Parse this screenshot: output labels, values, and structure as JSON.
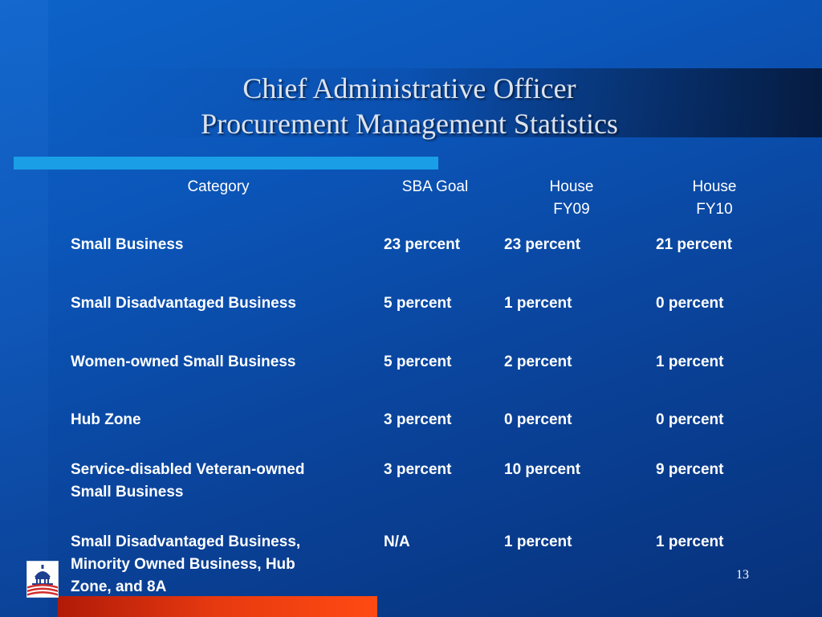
{
  "slide": {
    "title_line1": "Chief Administrative Officer",
    "title_line2": "Procurement Management Statistics",
    "page_number": "13"
  },
  "table": {
    "headers": {
      "category": "Category",
      "sba_goal": "SBA Goal",
      "fy09_line1": "House",
      "fy09_line2": "FY09",
      "fy10_line1": "House",
      "fy10_line2": "FY10"
    },
    "rows": [
      {
        "category": [
          "Small Business"
        ],
        "sba_goal": "23 percent",
        "fy09": "23 percent",
        "fy10": "21 percent"
      },
      {
        "category": [
          "Small Disadvantaged Business"
        ],
        "sba_goal": "5 percent",
        "fy09": "1 percent",
        "fy10": "0 percent"
      },
      {
        "category": [
          "Women-owned Small Business"
        ],
        "sba_goal": "5 percent",
        "fy09": "2 percent",
        "fy10": "1 percent"
      },
      {
        "category": [
          "Hub Zone"
        ],
        "sba_goal": "3 percent",
        "fy09": "0 percent",
        "fy10": "0 percent"
      },
      {
        "category": [
          "Service-disabled Veteran-owned",
          "Small Business"
        ],
        "sba_goal": "3 percent",
        "fy09": "10 percent",
        "fy10": "9 percent"
      },
      {
        "category": [
          "Small Disadvantaged Business,",
          "Minority Owned Business, Hub",
          "Zone, and 8A"
        ],
        "sba_goal": "N/A",
        "fy09": "1 percent",
        "fy10": "1 percent"
      }
    ]
  }
}
